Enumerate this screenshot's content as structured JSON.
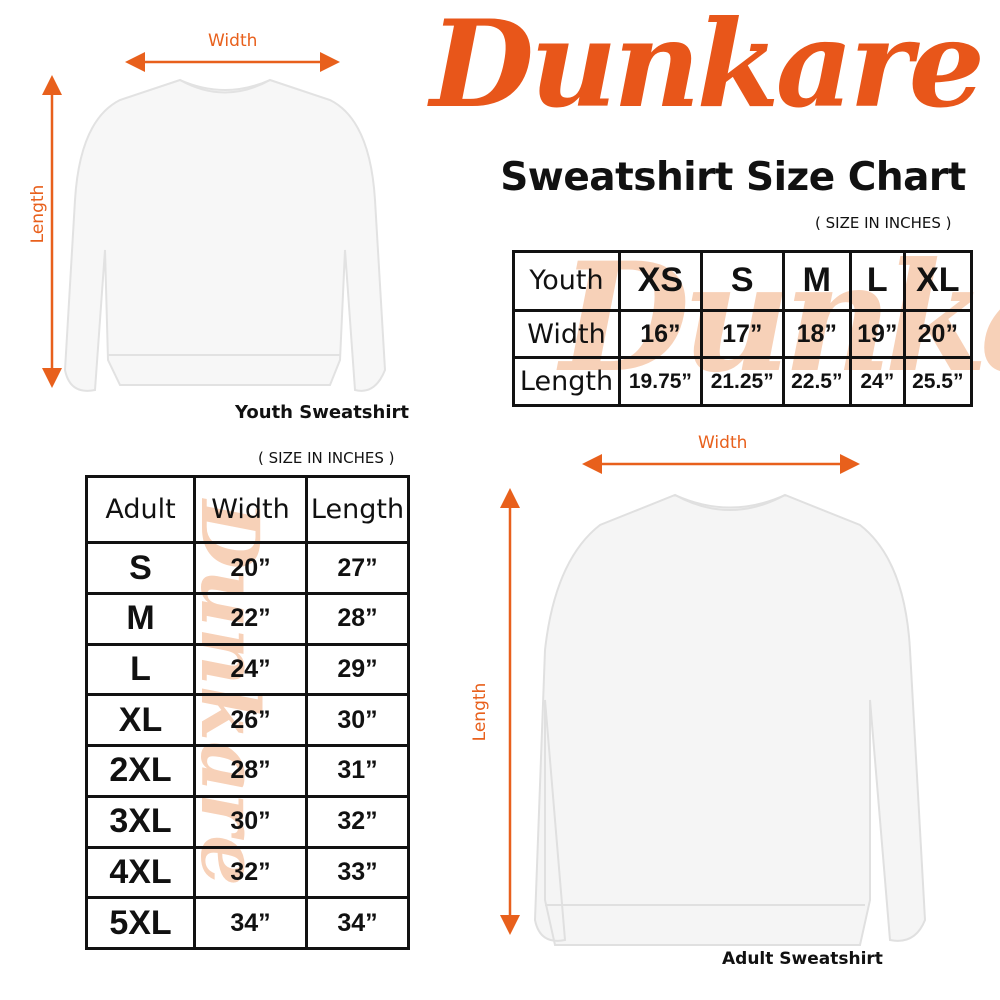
{
  "brand": {
    "logo_text": "DunkarE",
    "accent": "#e8601c"
  },
  "title": "Sweatshirt Size Chart",
  "youth": {
    "unit_note": "( SIZE IN INCHES )",
    "caption": "Youth Sweatshirt",
    "width_label": "Width",
    "length_label": "Length",
    "header": [
      "Youth",
      "XS",
      "S",
      "M",
      "L",
      "XL"
    ],
    "rows": [
      [
        "Width",
        "16”",
        "17”",
        "18”",
        "19”",
        "20”"
      ],
      [
        "Length",
        "19.75”",
        "21.25”",
        "22.5”",
        "24”",
        "25.5”"
      ]
    ]
  },
  "adult": {
    "unit_note": "( SIZE IN INCHES )",
    "caption": "Adult Sweatshirt",
    "width_label": "Width",
    "length_label": "Length",
    "header": [
      "Adult",
      "Width",
      "Length"
    ],
    "rows": [
      [
        "S",
        "20”",
        "27”"
      ],
      [
        "M",
        "22”",
        "28”"
      ],
      [
        "L",
        "24”",
        "29”"
      ],
      [
        "XL",
        "26”",
        "30”"
      ],
      [
        "2XL",
        "28”",
        "31”"
      ],
      [
        "3XL",
        "30”",
        "32”"
      ],
      [
        "4XL",
        "32”",
        "33”"
      ],
      [
        "5XL",
        "34”",
        "34”"
      ]
    ]
  }
}
